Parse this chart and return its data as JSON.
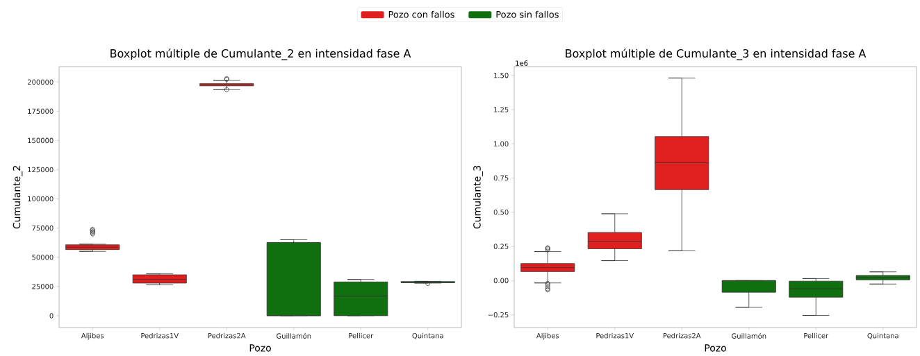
{
  "chart_data": [
    {
      "type": "box",
      "title": "Boxplot múltiple de Cumulante_2 en intensidad fase A",
      "xlabel": "Pozo",
      "ylabel": "Cumulante_2",
      "categories": [
        "Aljibes",
        "Pedrizas1V",
        "Pedrizas2A",
        "Guillamón",
        "Pellicer",
        "Quintana"
      ],
      "ylim": [
        -10150,
        213200
      ],
      "yticks": [
        0,
        25000,
        50000,
        75000,
        100000,
        125000,
        150000,
        175000,
        200000
      ],
      "legend": "top",
      "series": [
        {
          "name": "Pozo con fallos",
          "color": "#e01f1f",
          "boxes": [
            {
              "low": 55080,
              "q1": 56600,
              "median": 58600,
              "q3": 60660,
              "high": 61200,
              "outliers": [
                70000,
                71000,
                72000,
                73000,
                74000
              ]
            },
            {
              "low": 26400,
              "q1": 27900,
              "median": 31000,
              "q3": 35000,
              "high": 35800
            },
            {
              "low": 193800,
              "q1": 196700,
              "median": 197700,
              "q3": 198700,
              "high": 201500,
              "outliers": [
                193500,
                202300,
                203000
              ]
            },
            null,
            null,
            null
          ]
        },
        {
          "name": "Pozo sin fallos",
          "color": "#107010",
          "boxes": [
            null,
            null,
            null,
            {
              "low": 0,
              "q1": 0,
              "median": 0,
              "q3": 62700,
              "high": 65000
            },
            {
              "low": 0,
              "q1": 0,
              "median": 16750,
              "q3": 28900,
              "high": 31000
            },
            {
              "low": 27900,
              "q1": 28200,
              "median": 28700,
              "q3": 29200,
              "high": 29400,
              "outliers": [
                27500
              ]
            }
          ]
        }
      ]
    },
    {
      "type": "box",
      "title": "Boxplot múltiple de Cumulante_3 en intensidad fase A",
      "xlabel": "Pozo",
      "ylabel": "Cumulante_3",
      "annotations": [
        "1e6"
      ],
      "categories": [
        "Aljibes",
        "Pedrizas1V",
        "Pedrizas2A",
        "Guillamón",
        "Pellicer",
        "Quintana"
      ],
      "ylim": [
        -0.343,
        1.564
      ],
      "yticks": [
        {
          "value": -0.25,
          "label": "−0.25"
        },
        {
          "value": 0,
          "label": "0.00"
        },
        {
          "value": 0.25,
          "label": "0.25"
        },
        {
          "value": 0.5,
          "label": "0.50"
        },
        {
          "value": 0.75,
          "label": "0.75"
        },
        {
          "value": 1,
          "label": "1.00"
        },
        {
          "value": 1.25,
          "label": "1.25"
        },
        {
          "value": 1.5,
          "label": "1.50"
        }
      ],
      "series": [
        {
          "color": "#e01f1f",
          "boxes": [
            {
              "low": -0.017,
              "q1": 0.066,
              "median": 0.095,
              "q3": 0.125,
              "high": 0.212,
              "outliers": [
                0.225,
                0.235,
                0.24,
                -0.02,
                -0.03,
                -0.045,
                -0.06,
                -0.068
              ]
            },
            {
              "low": 0.146,
              "q1": 0.233,
              "median": 0.286,
              "q3": 0.352,
              "high": 0.489
            },
            {
              "low": 0.218,
              "q1": 0.665,
              "median": 0.862,
              "q3": 1.053,
              "high": 1.481
            },
            null,
            null,
            null
          ]
        },
        {
          "color": "#107010",
          "boxes": [
            null,
            null,
            null,
            {
              "low": -0.195,
              "q1": -0.085,
              "median": 0,
              "q3": 0,
              "high": 0
            },
            {
              "low": -0.254,
              "q1": -0.121,
              "median": -0.059,
              "q3": -0.004,
              "high": 0.015
            },
            {
              "low": -0.025,
              "q1": 0.006,
              "median": 0.023,
              "q3": 0.038,
              "high": 0.064
            }
          ]
        }
      ]
    }
  ]
}
